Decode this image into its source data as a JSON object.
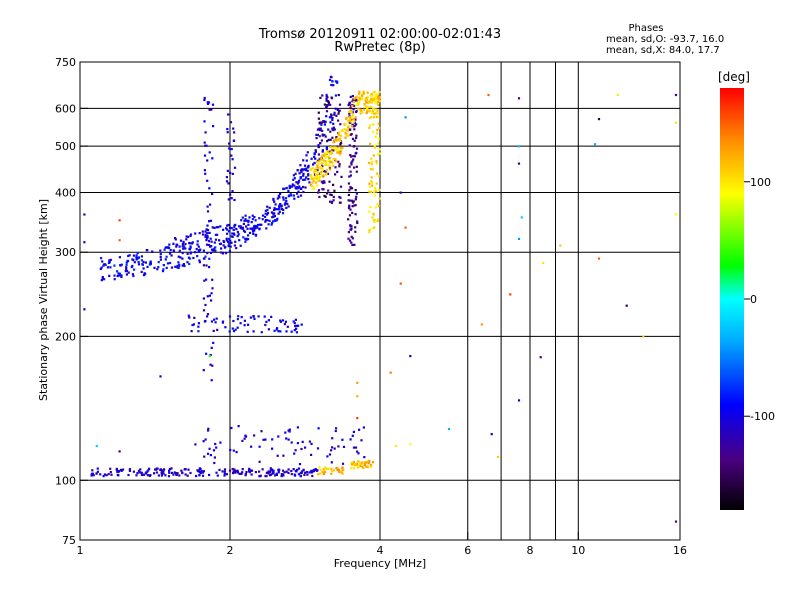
{
  "header": {
    "title": "Tromsø 20120911 02:00:00-02:01:43",
    "subtitle": "RwPretec (8p)"
  },
  "phase_info": {
    "heading": "Phases",
    "line1": "mean, sd,O:  -93.7, 16.0",
    "line2": "mean, sd,X:  84.0, 17.7"
  },
  "colorbar": {
    "label": "[deg]",
    "min": -180,
    "max": 180,
    "ticks": [
      {
        "value": 100,
        "label": "100"
      },
      {
        "value": 0,
        "label": "0"
      },
      {
        "value": -100,
        "label": "-100"
      }
    ]
  },
  "chart_data": {
    "type": "scatter",
    "xlabel": "Frequency [MHz]",
    "ylabel": "Stationary phase Virtual Height [km]",
    "xscale": "log",
    "yscale": "log",
    "xlim": [
      1,
      16
    ],
    "ylim": [
      75,
      750
    ],
    "xticks": [
      {
        "value": 1,
        "label": "1"
      },
      {
        "value": 2,
        "label": "2"
      },
      {
        "value": 4,
        "label": "4"
      },
      {
        "value": 6,
        "label": "6"
      },
      {
        "value": 8,
        "label": "8"
      },
      {
        "value": 10,
        "label": "10"
      },
      {
        "value": 16,
        "label": "16"
      }
    ],
    "xgrid": [
      2,
      4,
      6,
      7,
      8,
      9,
      10
    ],
    "yticks": [
      {
        "value": 75,
        "label": "75"
      },
      {
        "value": 100,
        "label": "100"
      },
      {
        "value": 200,
        "label": "200"
      },
      {
        "value": 300,
        "label": "300"
      },
      {
        "value": 400,
        "label": "400"
      },
      {
        "value": 500,
        "label": "500"
      },
      {
        "value": 600,
        "label": "600"
      },
      {
        "value": 750,
        "label": "750"
      }
    ],
    "ygrid": [
      100,
      200,
      300,
      400,
      500,
      600
    ],
    "grid": true,
    "color_by": "phase_deg",
    "clusters": [
      {
        "name": "E-layer echo",
        "f_range": [
          1.05,
          3.0
        ],
        "h_range": [
          102,
          106
        ],
        "phase": -110,
        "count": 220,
        "shape": "flat"
      },
      {
        "name": "E-layer echo high freq",
        "f_range": [
          3.0,
          3.4
        ],
        "h_range": [
          103,
          107
        ],
        "phase": 120,
        "count": 30,
        "shape": "flat"
      },
      {
        "name": "E-layer echo top",
        "f_range": [
          3.5,
          3.9
        ],
        "h_range": [
          106,
          110
        ],
        "phase": 115,
        "count": 40,
        "shape": "flat"
      },
      {
        "name": "E-layer scatter",
        "f_range": [
          1.7,
          3.8
        ],
        "h_range": [
          108,
          130
        ],
        "phase": -105,
        "count": 80,
        "shape": "scatter"
      },
      {
        "name": "O-mode F trace",
        "f_range": [
          1.1,
          3.3
        ],
        "h_range": [
          258,
          700
        ],
        "phase": -95,
        "count": 360,
        "shape": "cusp",
        "fc": 3.4,
        "h0": 262
      },
      {
        "name": "O-mode F trace band",
        "f_range": [
          1.5,
          3.3
        ],
        "h_range": [
          270,
          600
        ],
        "phase": -100,
        "count": 180,
        "shape": "cusp",
        "fc": 3.6,
        "h0": 275
      },
      {
        "name": "O-mode cusp (dark)",
        "f_range": [
          3.0,
          3.35
        ],
        "h_range": [
          380,
          640
        ],
        "phase": -140,
        "count": 110,
        "shape": "column"
      },
      {
        "name": "O-mode second cusp",
        "f_range": [
          3.45,
          3.6
        ],
        "h_range": [
          300,
          640
        ],
        "phase": -130,
        "count": 110,
        "shape": "column"
      },
      {
        "name": "X-mode F trace",
        "f_range": [
          2.9,
          4.0
        ],
        "h_range": [
          305,
          650
        ],
        "phase": 110,
        "count": 260,
        "shape": "cusp",
        "fc": 4.05,
        "h0": 305
      },
      {
        "name": "X-mode column",
        "f_range": [
          3.8,
          4.0
        ],
        "h_range": [
          330,
          650
        ],
        "phase": 105,
        "count": 80,
        "shape": "column"
      },
      {
        "name": "Sporadic 210 km",
        "f_range": [
          1.65,
          2.8
        ],
        "h_range": [
          204,
          222
        ],
        "phase": -100,
        "count": 70,
        "shape": "scatter"
      },
      {
        "name": "Column near 1.8 MHz",
        "f_range": [
          1.77,
          1.85
        ],
        "h_range": [
          160,
          650
        ],
        "phase": -105,
        "count": 60,
        "shape": "column"
      },
      {
        "name": "Column near 2.0 MHz",
        "f_range": [
          1.97,
          2.05
        ],
        "h_range": [
          380,
          600
        ],
        "phase": -110,
        "count": 25,
        "shape": "column"
      }
    ],
    "isolated_points": [
      {
        "f": 6.6,
        "h": 640,
        "phase": 150
      },
      {
        "f": 7.6,
        "h": 630,
        "phase": -140
      },
      {
        "f": 7.6,
        "h": 460,
        "phase": -120
      },
      {
        "f": 7.6,
        "h": 500,
        "phase": -30
      },
      {
        "f": 7.6,
        "h": 320,
        "phase": -40
      },
      {
        "f": 7.7,
        "h": 355,
        "phase": -20
      },
      {
        "f": 11.0,
        "h": 570,
        "phase": -150
      },
      {
        "f": 10.8,
        "h": 505,
        "phase": -30
      },
      {
        "f": 12.0,
        "h": 640,
        "phase": 80
      },
      {
        "f": 15.7,
        "h": 640,
        "phase": -130
      },
      {
        "f": 15.7,
        "h": 560,
        "phase": 100
      },
      {
        "f": 15.7,
        "h": 360,
        "phase": 90
      },
      {
        "f": 15.7,
        "h": 82,
        "phase": -130
      },
      {
        "f": 1.02,
        "h": 360,
        "phase": -120
      },
      {
        "f": 1.02,
        "h": 315,
        "phase": -100
      },
      {
        "f": 1.02,
        "h": 228,
        "phase": -110
      },
      {
        "f": 1.2,
        "h": 350,
        "phase": 160
      },
      {
        "f": 1.2,
        "h": 318,
        "phase": 150
      },
      {
        "f": 1.08,
        "h": 118,
        "phase": -20
      },
      {
        "f": 1.2,
        "h": 115,
        "phase": -130
      },
      {
        "f": 1.45,
        "h": 165,
        "phase": -110
      },
      {
        "f": 1.82,
        "h": 182,
        "phase": 40
      },
      {
        "f": 4.4,
        "h": 258,
        "phase": 155
      },
      {
        "f": 4.5,
        "h": 338,
        "phase": 150
      },
      {
        "f": 4.4,
        "h": 400,
        "phase": -120
      },
      {
        "f": 4.5,
        "h": 575,
        "phase": -40
      },
      {
        "f": 4.6,
        "h": 182,
        "phase": -110
      },
      {
        "f": 4.2,
        "h": 168,
        "phase": 140
      },
      {
        "f": 3.6,
        "h": 160,
        "phase": 130
      },
      {
        "f": 3.6,
        "h": 150,
        "phase": 120
      },
      {
        "f": 3.6,
        "h": 135,
        "phase": 160
      },
      {
        "f": 4.3,
        "h": 118,
        "phase": 100
      },
      {
        "f": 4.6,
        "h": 119,
        "phase": 90
      },
      {
        "f": 5.5,
        "h": 128,
        "phase": -30
      },
      {
        "f": 6.4,
        "h": 212,
        "phase": 130
      },
      {
        "f": 6.7,
        "h": 125,
        "phase": -110
      },
      {
        "f": 6.9,
        "h": 112,
        "phase": 110
      },
      {
        "f": 7.3,
        "h": 245,
        "phase": 160
      },
      {
        "f": 7.6,
        "h": 147,
        "phase": -110
      },
      {
        "f": 8.4,
        "h": 181,
        "phase": -140
      },
      {
        "f": 9.2,
        "h": 310,
        "phase": 110
      },
      {
        "f": 11.0,
        "h": 291,
        "phase": 150
      },
      {
        "f": 12.5,
        "h": 232,
        "phase": -150
      },
      {
        "f": 13.5,
        "h": 200,
        "phase": 110
      },
      {
        "f": 8.5,
        "h": 285,
        "phase": 100
      }
    ]
  }
}
